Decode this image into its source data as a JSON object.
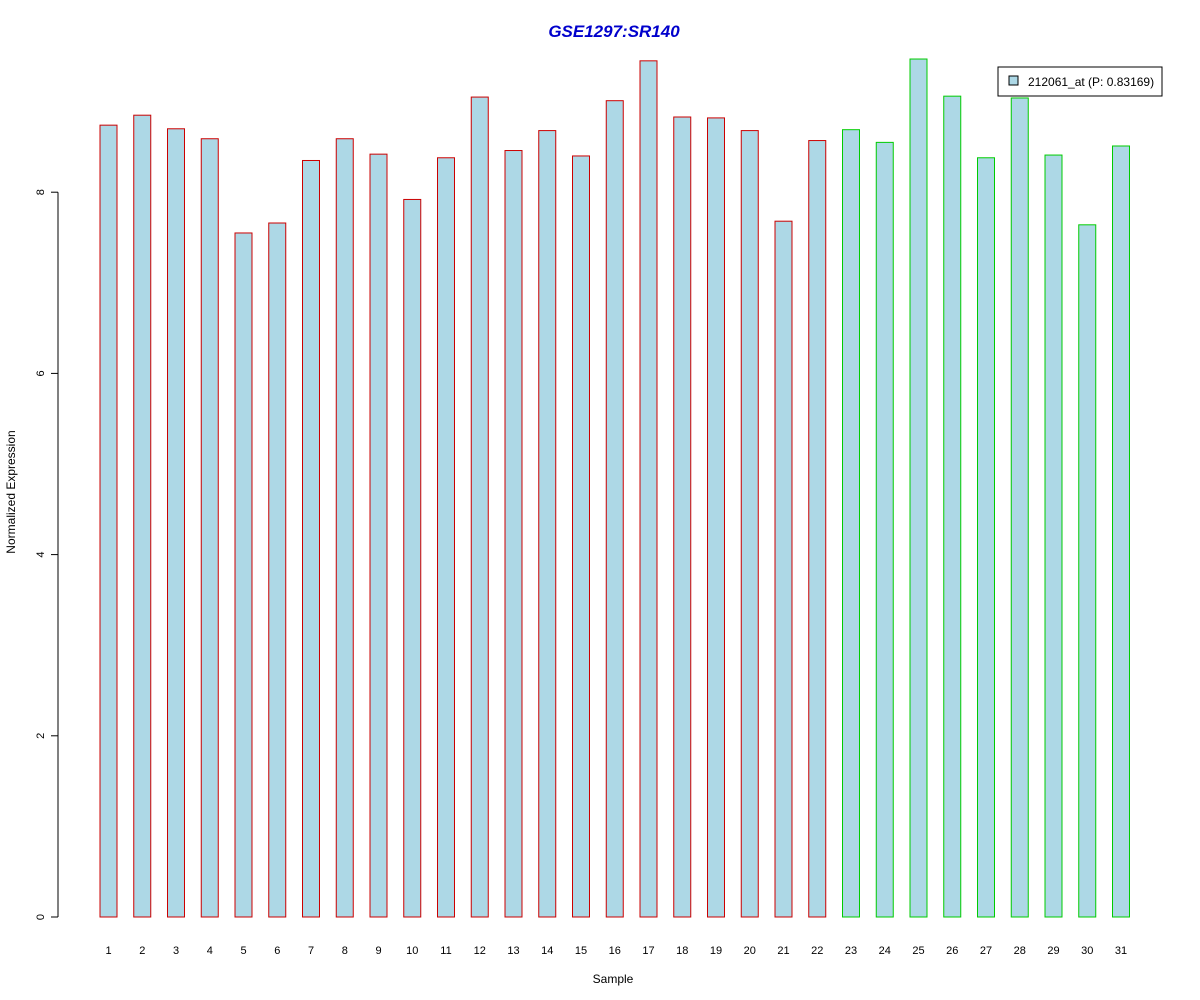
{
  "chart_data": {
    "type": "bar",
    "title": "GSE1297:SR140",
    "xlabel": "Sample",
    "ylabel": "Normalized Expression",
    "ylim": [
      0,
      9.5
    ],
    "yticks": [
      "0",
      "2",
      "4",
      "6",
      "8"
    ],
    "categories": [
      "1",
      "2",
      "3",
      "4",
      "5",
      "6",
      "7",
      "8",
      "9",
      "10",
      "11",
      "12",
      "13",
      "14",
      "15",
      "16",
      "17",
      "18",
      "19",
      "20",
      "21",
      "22",
      "23",
      "24",
      "25",
      "26",
      "27",
      "28",
      "29",
      "30",
      "31"
    ],
    "values": [
      8.74,
      8.85,
      8.7,
      8.59,
      7.55,
      7.66,
      8.35,
      8.59,
      8.42,
      7.92,
      8.38,
      9.05,
      8.46,
      8.68,
      8.4,
      9.01,
      9.45,
      8.83,
      8.82,
      8.68,
      7.68,
      8.57,
      8.69,
      8.55,
      9.47,
      9.06,
      8.38,
      9.04,
      8.41,
      7.64,
      8.51
    ],
    "group": [
      "red",
      "red",
      "red",
      "red",
      "red",
      "red",
      "red",
      "red",
      "red",
      "red",
      "red",
      "red",
      "red",
      "red",
      "red",
      "red",
      "red",
      "red",
      "red",
      "red",
      "red",
      "red",
      "green",
      "green",
      "green",
      "green",
      "green",
      "green",
      "green",
      "green",
      "green"
    ],
    "legend": {
      "label": "212061_at (P: 0.83169)",
      "position": "top-right"
    },
    "colors": {
      "fill": "#add8e6",
      "border_red": "#cc0000",
      "border_green": "#00cc00",
      "title": "#0000cc"
    },
    "grid": false
  }
}
